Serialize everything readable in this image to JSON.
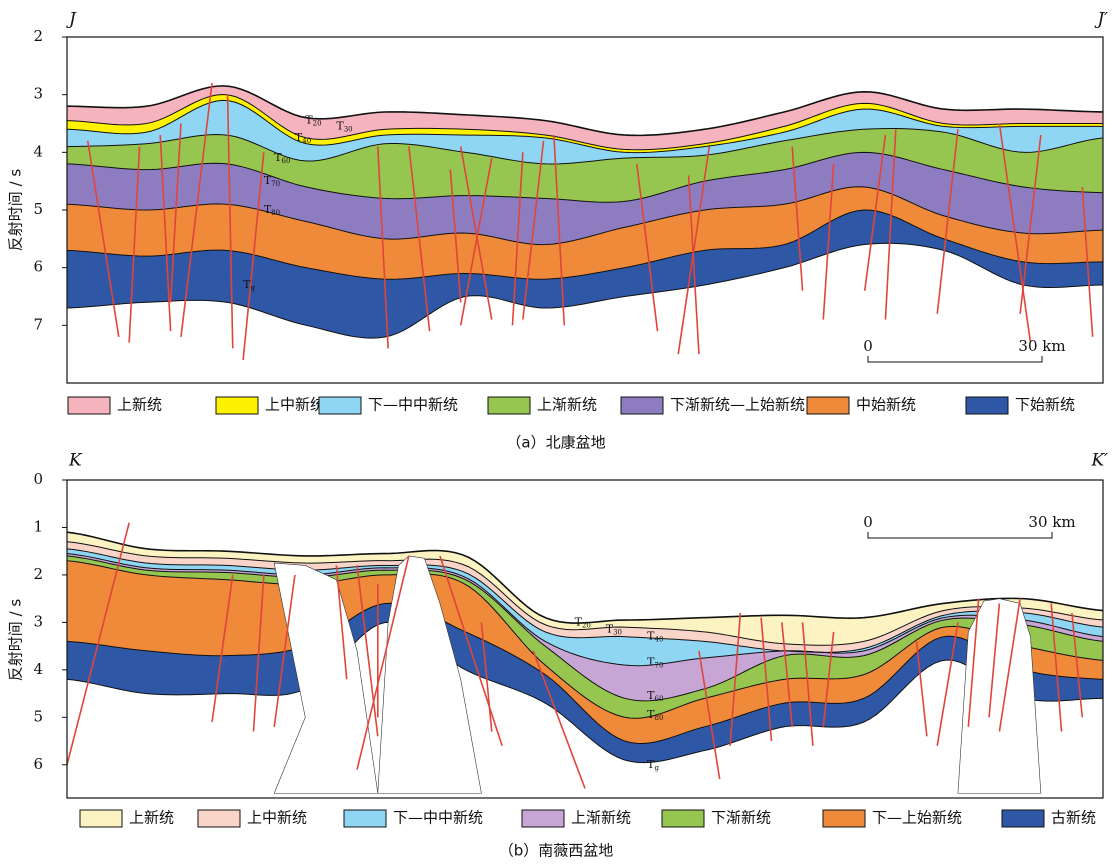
{
  "panels": [
    {
      "corner_left": "J",
      "corner_right": "J′",
      "y_axis_label": "反射时间 / s",
      "ylim": [
        2,
        8
      ],
      "yticks": [
        2,
        3,
        4,
        5,
        6,
        7
      ],
      "scale_bar": {
        "start": "0",
        "end": "30 km"
      },
      "legend": [
        {
          "name": "上新统",
          "color": "#f4b3bd"
        },
        {
          "name": "上中新统",
          "color": "#fff200"
        },
        {
          "name": "下—中中新统",
          "color": "#8fd6f4"
        },
        {
          "name": "上渐新统",
          "color": "#96c64f"
        },
        {
          "name": "下渐新统—上始新统",
          "color": "#8d7dc0"
        },
        {
          "name": "中始新统",
          "color": "#ef8a3a"
        },
        {
          "name": "下始新统",
          "color": "#2e57a6"
        }
      ],
      "horizon_labels": [
        {
          "base": "T",
          "sub": "20"
        },
        {
          "base": "T",
          "sub": "30"
        },
        {
          "base": "T",
          "sub": "40"
        },
        {
          "base": "T",
          "sub": "60"
        },
        {
          "base": "T",
          "sub": "70"
        },
        {
          "base": "T",
          "sub": "80"
        },
        {
          "base": "T",
          "sub": "g"
        }
      ],
      "caption": "（a）北康盆地"
    },
    {
      "corner_left": "K",
      "corner_right": "K′",
      "y_axis_label": "反射时间 / s",
      "ylim": [
        0,
        6.7
      ],
      "yticks": [
        0,
        1,
        2,
        3,
        4,
        5,
        6
      ],
      "scale_bar": {
        "start": "0",
        "end": "30 km"
      },
      "legend": [
        {
          "name": "上新统",
          "color": "#fbf3c2"
        },
        {
          "name": "上中新统",
          "color": "#f9d4c8"
        },
        {
          "name": "下—中中新统",
          "color": "#8fd6f4"
        },
        {
          "name": "上渐新统",
          "color": "#c7a5d5"
        },
        {
          "name": "下渐新统",
          "color": "#96c64f"
        },
        {
          "name": "下—上始新统",
          "color": "#ef8a3a"
        },
        {
          "name": "古新统",
          "color": "#2e57a6"
        }
      ],
      "horizon_labels": [
        {
          "base": "T",
          "sub": "20"
        },
        {
          "base": "T",
          "sub": "30"
        },
        {
          "base": "T",
          "sub": "40"
        },
        {
          "base": "T",
          "sub": "70"
        },
        {
          "base": "T",
          "sub": "60"
        },
        {
          "base": "T",
          "sub": "80"
        },
        {
          "base": "T",
          "sub": "g"
        }
      ],
      "caption": "（b）南薇西盆地"
    }
  ]
}
